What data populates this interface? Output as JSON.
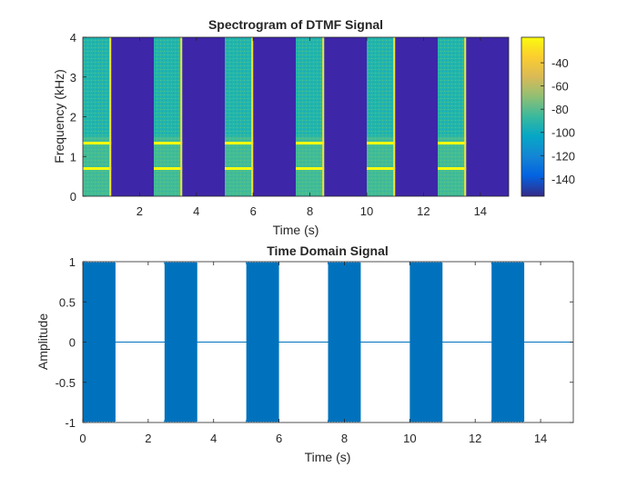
{
  "chart_data": [
    {
      "type": "heatmap",
      "title": "Spectrogram of DTMF Signal",
      "xlabel": "Time (s)",
      "ylabel": "Frequency (kHz)",
      "xlim": [
        0,
        15
      ],
      "ylim": [
        0,
        4
      ],
      "xticks": [
        2,
        4,
        6,
        8,
        10,
        12,
        14
      ],
      "yticks": [
        0,
        1,
        2,
        3,
        4
      ],
      "tone_bursts_s": [
        [
          0,
          1
        ],
        [
          2.5,
          3.5
        ],
        [
          5,
          6
        ],
        [
          7.5,
          8.5
        ],
        [
          10,
          11
        ],
        [
          12.5,
          13.5
        ]
      ],
      "tone_frequencies_khz": [
        0.697,
        1.336
      ],
      "colorbar": {
        "range": [
          -155,
          -18
        ],
        "ticks": [
          -40,
          -60,
          -80,
          -100,
          -120,
          -140
        ],
        "level_tone": -20,
        "level_burst_band": -85,
        "level_silence": -150
      },
      "grid": false
    },
    {
      "type": "line",
      "title": "Time Domain Signal",
      "xlabel": "Time (s)",
      "ylabel": "Amplitude",
      "xlim": [
        0,
        15
      ],
      "ylim": [
        -1,
        1
      ],
      "xticks": [
        0,
        2,
        4,
        6,
        8,
        10,
        12,
        14
      ],
      "yticks": [
        -1,
        -0.5,
        0,
        0.5,
        1
      ],
      "bursts_s": [
        [
          0,
          1
        ],
        [
          2.5,
          3.5
        ],
        [
          5,
          6
        ],
        [
          7.5,
          8.5
        ],
        [
          10,
          11
        ],
        [
          12.5,
          13.5
        ]
      ],
      "burst_amplitude": [
        -1,
        1
      ],
      "silence_amplitude": 0,
      "line_color": "#0072BD",
      "grid": false
    }
  ],
  "colors": {
    "parula_low": "#3e26a8",
    "parula_mid": "#1fb7ab",
    "parula_high": "#f9fb0e",
    "signal": "#0072BD"
  }
}
